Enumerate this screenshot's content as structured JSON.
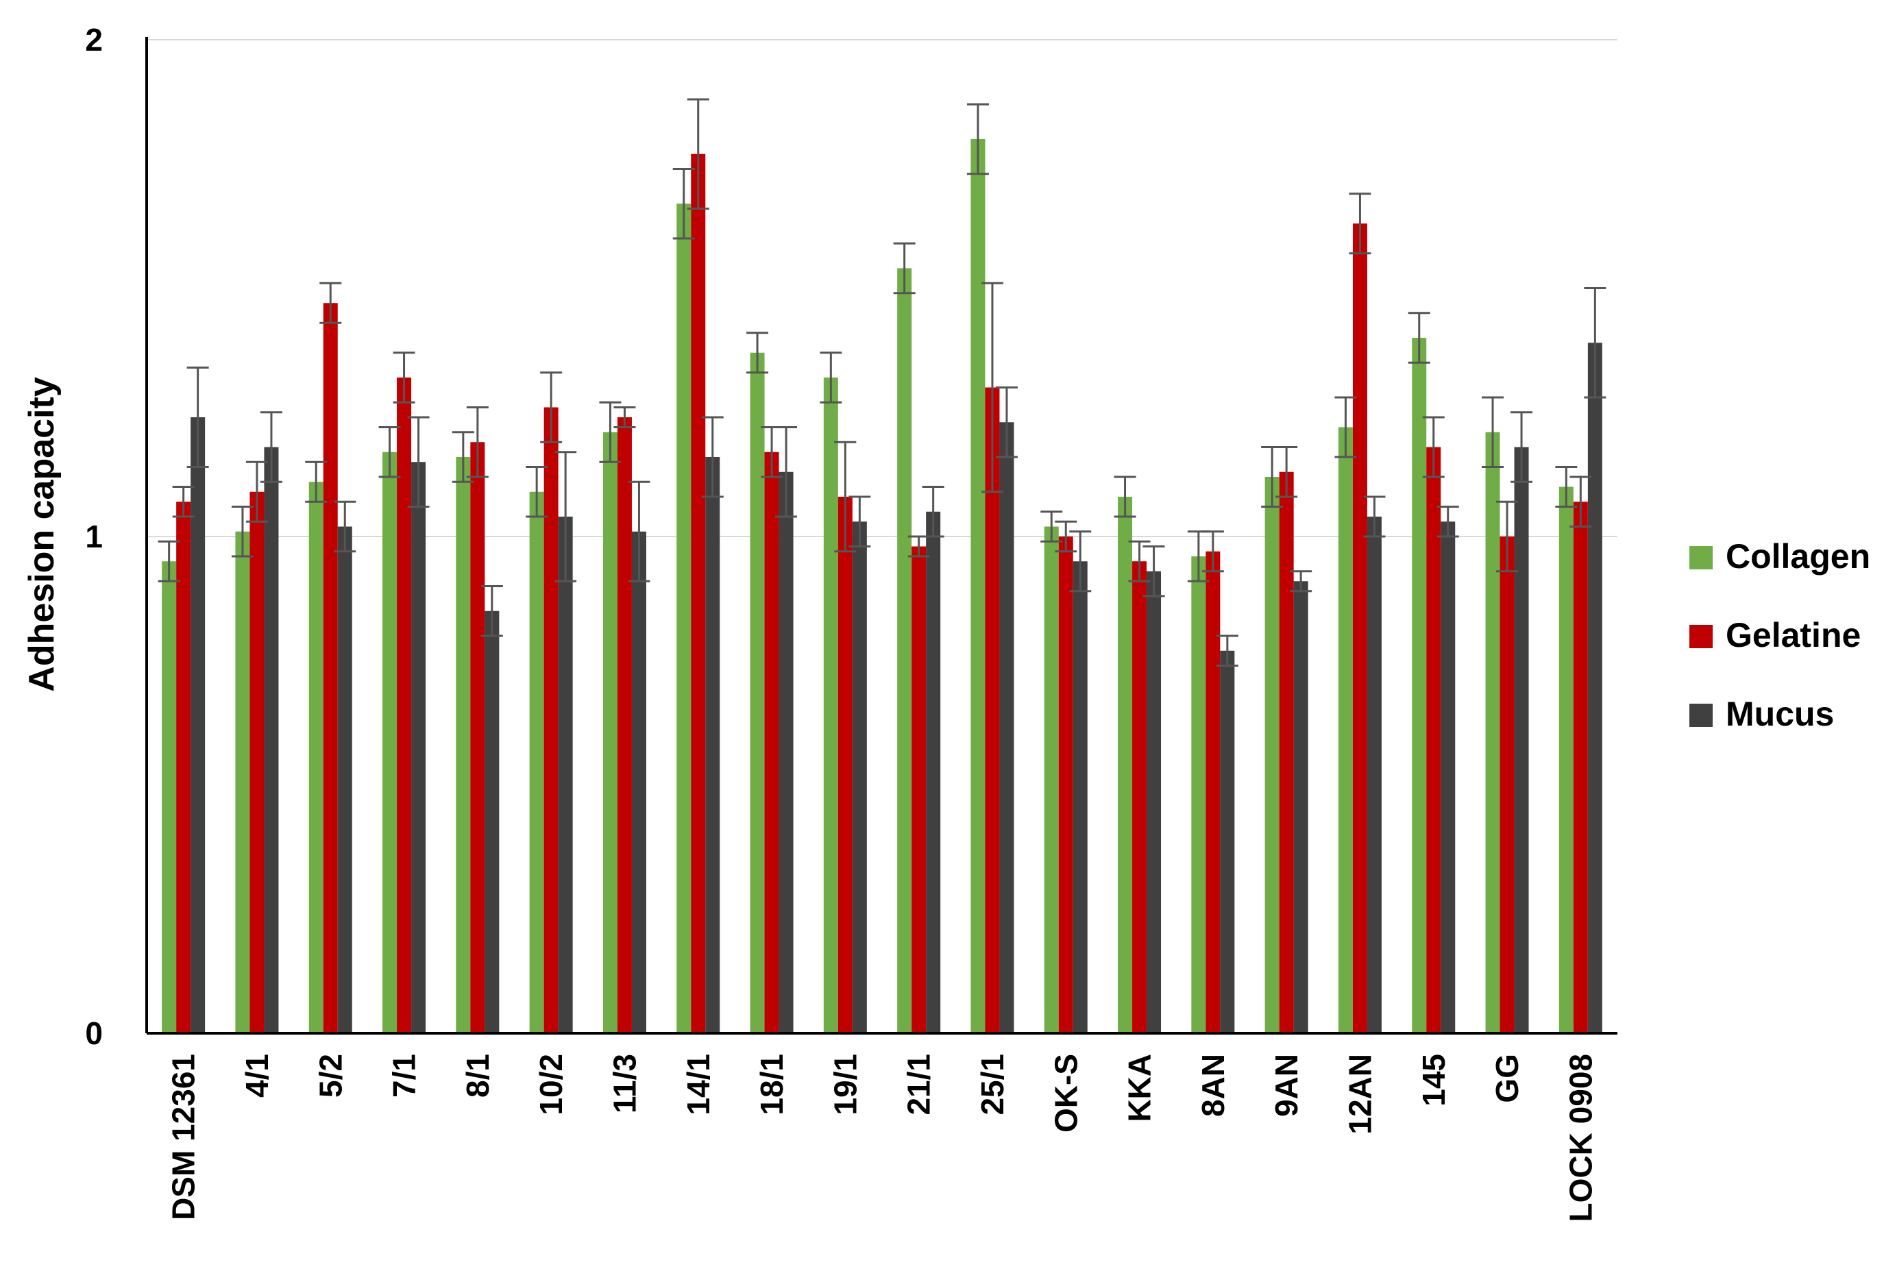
{
  "chart_data": {
    "type": "bar",
    "title": "",
    "xlabel": "",
    "ylabel": "Adhesion capacity",
    "ylim": [
      0,
      2
    ],
    "yticks": [
      "0",
      "1",
      "2"
    ],
    "grid": "horizontal",
    "legend_position": "right",
    "error_bars": true,
    "categories": [
      "DSM 12361",
      "4/1",
      "5/2",
      "7/1",
      "8/1",
      "10/2",
      "11/3",
      "14/1",
      "18/1",
      "19/1",
      "21/1",
      "25/1",
      "OK-S",
      "KKA",
      "8AN",
      "9AN",
      "12AN",
      "145",
      "GG",
      "LOCK 0908"
    ],
    "series": [
      {
        "name": "Collagen",
        "color": "#70ad47",
        "values": [
          0.95,
          1.01,
          1.11,
          1.17,
          1.16,
          1.09,
          1.21,
          1.67,
          1.37,
          1.32,
          1.54,
          1.8,
          1.02,
          1.08,
          0.96,
          1.12,
          1.22,
          1.4,
          1.21,
          1.1
        ],
        "errors": [
          0.04,
          0.05,
          0.04,
          0.05,
          0.05,
          0.05,
          0.06,
          0.07,
          0.04,
          0.05,
          0.05,
          0.07,
          0.03,
          0.04,
          0.05,
          0.06,
          0.06,
          0.05,
          0.07,
          0.04
        ]
      },
      {
        "name": "Gelatine",
        "color": "#c00000",
        "values": [
          1.07,
          1.09,
          1.47,
          1.32,
          1.19,
          1.26,
          1.24,
          1.77,
          1.17,
          1.08,
          0.98,
          1.3,
          1.0,
          0.95,
          0.97,
          1.13,
          1.63,
          1.18,
          1.0,
          1.07
        ],
        "errors": [
          0.03,
          0.06,
          0.04,
          0.05,
          0.07,
          0.07,
          0.02,
          0.11,
          0.05,
          0.11,
          0.02,
          0.21,
          0.03,
          0.04,
          0.04,
          0.05,
          0.06,
          0.06,
          0.07,
          0.05
        ]
      },
      {
        "name": "Mucus",
        "color": "#404040",
        "values": [
          1.24,
          1.18,
          1.02,
          1.15,
          0.85,
          1.04,
          1.01,
          1.16,
          1.13,
          1.03,
          1.05,
          1.23,
          0.95,
          0.93,
          0.77,
          0.91,
          1.04,
          1.03,
          1.18,
          1.39
        ],
        "errors": [
          0.1,
          0.07,
          0.05,
          0.09,
          0.05,
          0.13,
          0.1,
          0.08,
          0.09,
          0.05,
          0.05,
          0.07,
          0.06,
          0.05,
          0.03,
          0.02,
          0.04,
          0.03,
          0.07,
          0.11
        ]
      }
    ]
  }
}
